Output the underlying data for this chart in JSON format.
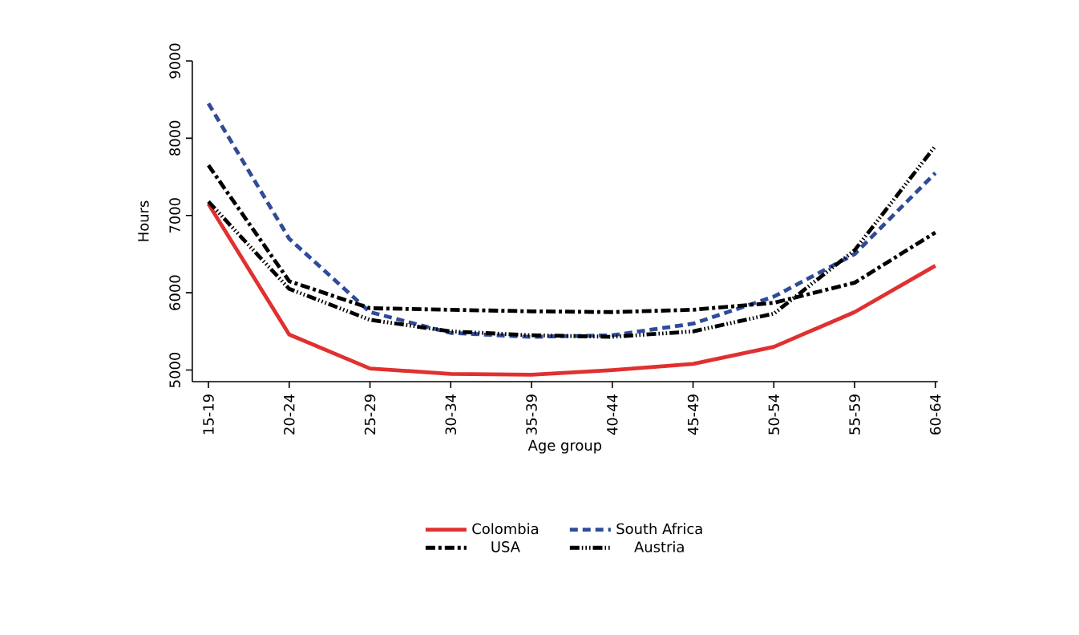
{
  "chart_data": {
    "type": "line",
    "xlabel": "Age group",
    "ylabel": "Hours",
    "categories": [
      "15-19",
      "20-24",
      "25-29",
      "30-34",
      "35-39",
      "40-44",
      "45-49",
      "50-54",
      "55-59",
      "60-64"
    ],
    "ylim": [
      4850,
      9000
    ],
    "yticks": [
      5000,
      6000,
      7000,
      8000,
      9000
    ],
    "grid": false,
    "legend": "bottom",
    "marker": "none",
    "series": [
      {
        "name": "Colombia",
        "color": "#e03030",
        "line_style": "solid",
        "values": [
          7150,
          5460,
          5020,
          4950,
          4940,
          5000,
          5080,
          5300,
          5750,
          6350
        ]
      },
      {
        "name": "South Africa",
        "color": "#2f4b9a",
        "line_style": "dashed",
        "values": [
          8450,
          6700,
          5750,
          5480,
          5430,
          5450,
          5600,
          5950,
          6500,
          7550
        ]
      },
      {
        "name": "USA",
        "color": "#000000",
        "line_style": "dashdot",
        "values": [
          7650,
          6150,
          5800,
          5780,
          5760,
          5750,
          5780,
          5870,
          6130,
          6780
        ]
      },
      {
        "name": "Austria",
        "color": "#000000",
        "line_style": "dashdotdot",
        "values": [
          7180,
          6050,
          5650,
          5500,
          5450,
          5430,
          5500,
          5730,
          6550,
          7900
        ]
      }
    ]
  }
}
